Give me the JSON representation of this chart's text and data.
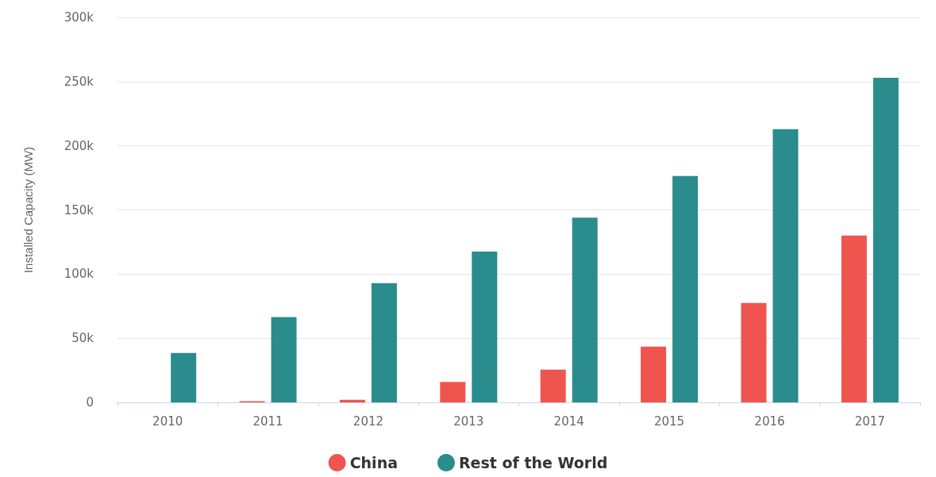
{
  "chart_data": {
    "type": "bar",
    "ylabel": "Installed Capacity (MW)",
    "categories": [
      "2010",
      "2011",
      "2012",
      "2013",
      "2014",
      "2015",
      "2016",
      "2017"
    ],
    "series": [
      {
        "name": "China",
        "color": "#f0544f",
        "values": [
          0,
          1000,
          2000,
          16000,
          25500,
          43500,
          77500,
          130000
        ]
      },
      {
        "name": "Rest of the World",
        "color": "#2a8c8c",
        "values": [
          38500,
          66500,
          93000,
          117500,
          144000,
          176500,
          213000,
          253000
        ]
      }
    ],
    "ylim": [
      0,
      300000
    ],
    "yticks": [
      {
        "value": 0,
        "label": "0"
      },
      {
        "value": 50000,
        "label": "50k"
      },
      {
        "value": 100000,
        "label": "100k"
      },
      {
        "value": 150000,
        "label": "150k"
      },
      {
        "value": 200000,
        "label": "200k"
      },
      {
        "value": 250000,
        "label": "250k"
      },
      {
        "value": 300000,
        "label": "300k"
      }
    ],
    "grid": "y",
    "legend": "bottom"
  }
}
